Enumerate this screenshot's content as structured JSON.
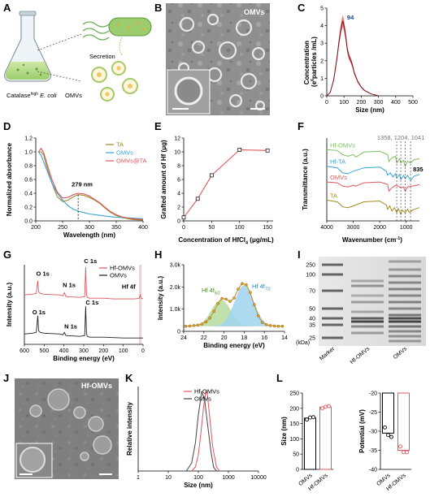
{
  "colors": {
    "ta": "#9a8a2a",
    "omvs": "#3aa3d4",
    "omvsta": "#e0575c",
    "hfomvs": "#e0575c",
    "hfta": "#3aa3d4",
    "gray": "#555555",
    "green": "#7cbf5f",
    "gold": "#a08a20",
    "xps_green": "#b5dc9e",
    "xps_blue": "#9fd4ee"
  },
  "panels": {
    "A": "A",
    "B": "B",
    "C": "C",
    "D": "D",
    "E": "E",
    "F": "F",
    "G": "G",
    "H": "H",
    "I": "I",
    "J": "J",
    "K": "K",
    "L": "L"
  },
  "A": {
    "secretion": "Secretion",
    "catalase_pre": "Catalase",
    "catalase_sup": "high",
    "catalase_species": "E. coli",
    "omvs": "OMVs"
  },
  "B": {
    "label": "OMVs"
  },
  "J": {
    "label": "Hf-OMVs"
  },
  "I": {
    "kda": [
      "250",
      "100",
      "70",
      "50",
      "40",
      "35",
      "25"
    ],
    "unit": "(kDa)",
    "lanes": [
      "Marker",
      "Hf-OMVs",
      "OMVs"
    ]
  },
  "chart_data": [
    {
      "panel": "C",
      "type": "line",
      "xlabel": "Size (nm)",
      "ylabel_main": "Concentration",
      "ylabel_sub": "(e",
      "ylabel_sup": "6",
      "ylabel_rest": "particles /mL)",
      "xlim": [
        0,
        500
      ],
      "ylim": [
        0,
        5
      ],
      "xticks": [
        "0",
        "100",
        "200",
        "300",
        "400",
        "500"
      ],
      "yticks": [
        "0",
        "1",
        "2",
        "3",
        "4",
        "5"
      ],
      "peak_label": "94",
      "x": [
        0,
        20,
        40,
        60,
        70,
        80,
        90,
        94,
        100,
        110,
        120,
        130,
        140,
        150,
        160,
        180,
        200,
        220,
        240,
        260,
        280,
        300
      ],
      "y": [
        0,
        0.2,
        0.9,
        2.2,
        3.0,
        3.7,
        4.2,
        4.25,
        4.0,
        3.4,
        2.6,
        2.2,
        2.0,
        1.7,
        1.3,
        0.8,
        0.5,
        0.3,
        0.2,
        0.1,
        0.05,
        0
      ]
    },
    {
      "panel": "D",
      "type": "line",
      "xlabel": "Wavelength (nm)",
      "ylabel": "Normalized absorbance",
      "xlim": [
        200,
        400
      ],
      "ylim": [
        0,
        1.2
      ],
      "xticks": [
        "200",
        "250",
        "300",
        "350",
        "400"
      ],
      "yticks": [
        "0.0",
        "0.2",
        "0.4",
        "0.6",
        "0.8",
        "1.0",
        "1.2"
      ],
      "annotation": "279 nm",
      "legend": [
        "TA",
        "OMVs",
        "OMVs@TA"
      ],
      "series": [
        {
          "name": "TA",
          "x": [
            205,
            210,
            215,
            220,
            230,
            240,
            250,
            260,
            270,
            279,
            290,
            300,
            310,
            320,
            330,
            340,
            350,
            360,
            380,
            400
          ],
          "y": [
            1.0,
            1.0,
            0.95,
            0.8,
            0.55,
            0.35,
            0.28,
            0.3,
            0.35,
            0.38,
            0.37,
            0.34,
            0.3,
            0.25,
            0.18,
            0.12,
            0.08,
            0.05,
            0.02,
            0.01
          ]
        },
        {
          "name": "OMVs",
          "x": [
            205,
            210,
            220,
            230,
            240,
            250,
            260,
            270,
            280,
            290,
            300,
            320,
            340,
            360,
            380,
            400
          ],
          "y": [
            1.0,
            0.95,
            0.75,
            0.55,
            0.4,
            0.3,
            0.22,
            0.17,
            0.14,
            0.12,
            0.1,
            0.08,
            0.06,
            0.05,
            0.04,
            0.03
          ]
        },
        {
          "name": "OMVs@TA",
          "x": [
            205,
            210,
            215,
            220,
            230,
            240,
            250,
            260,
            270,
            279,
            290,
            300,
            310,
            320,
            330,
            340,
            350,
            360,
            380,
            400
          ],
          "y": [
            1.0,
            1.05,
            0.98,
            0.85,
            0.6,
            0.42,
            0.33,
            0.34,
            0.38,
            0.4,
            0.39,
            0.36,
            0.31,
            0.26,
            0.19,
            0.13,
            0.09,
            0.06,
            0.03,
            0.02
          ]
        }
      ]
    },
    {
      "panel": "E",
      "type": "line",
      "xlabel_pre": "Concentration of HfCl",
      "xlabel_sub": "4",
      "xlabel_post": " (μg/mL)",
      "ylabel": "Grafted amount of Hf (μg)",
      "xlim": [
        0,
        160
      ],
      "ylim": [
        0,
        12
      ],
      "xticks": [
        "0",
        "50",
        "100",
        "150"
      ],
      "yticks": [
        "0",
        "2",
        "4",
        "6",
        "8",
        "10",
        "12"
      ],
      "x": [
        0,
        25,
        50,
        100,
        150
      ],
      "y": [
        0.5,
        3.2,
        6.6,
        10.3,
        10.2
      ]
    },
    {
      "panel": "F",
      "type": "line",
      "xlabel_pre": "Wavenumber (cm",
      "xlabel_sup": "-1",
      "xlabel_post": ")",
      "ylabel": "Transmittance (a.u.)",
      "xlim": [
        4000,
        500
      ],
      "xticks": [
        "4000",
        "3000",
        "2000",
        "1000"
      ],
      "peaks": [
        "1358",
        "1204",
        "1041"
      ],
      "peak_835": "835",
      "series": [
        {
          "name": "Hf-OMVs",
          "x": [
            4000,
            3600,
            3400,
            3200,
            3000,
            2900,
            2600,
            2000,
            1700,
            1650,
            1540,
            1400,
            1358,
            1250,
            1204,
            1100,
            1041,
            950,
            835,
            700,
            500
          ],
          "y": [
            0.86,
            0.85,
            0.8,
            0.78,
            0.8,
            0.77,
            0.83,
            0.84,
            0.8,
            0.72,
            0.76,
            0.78,
            0.7,
            0.75,
            0.7,
            0.73,
            0.66,
            0.72,
            0.7,
            0.74,
            0.75
          ]
        },
        {
          "name": "Hf-TA",
          "x": [
            4000,
            3600,
            3400,
            3200,
            3000,
            2600,
            2000,
            1750,
            1700,
            1600,
            1500,
            1400,
            1358,
            1250,
            1204,
            1100,
            1041,
            950,
            835,
            700,
            500
          ],
          "y": [
            0.66,
            0.64,
            0.58,
            0.57,
            0.6,
            0.64,
            0.65,
            0.6,
            0.55,
            0.58,
            0.53,
            0.57,
            0.52,
            0.56,
            0.5,
            0.55,
            0.51,
            0.55,
            0.49,
            0.54,
            0.56
          ]
        },
        {
          "name": "OMVs",
          "x": [
            4000,
            3600,
            3400,
            3200,
            3000,
            2900,
            2600,
            2000,
            1700,
            1650,
            1540,
            1400,
            1300,
            1200,
            1100,
            1041,
            950,
            800,
            600,
            500
          ],
          "y": [
            0.47,
            0.46,
            0.42,
            0.41,
            0.43,
            0.42,
            0.46,
            0.47,
            0.44,
            0.36,
            0.4,
            0.43,
            0.42,
            0.4,
            0.41,
            0.36,
            0.41,
            0.42,
            0.43,
            0.44
          ]
        },
        {
          "name": "TA",
          "x": [
            4000,
            3600,
            3400,
            3200,
            3000,
            2600,
            2000,
            1750,
            1700,
            1620,
            1540,
            1450,
            1358,
            1300,
            1204,
            1150,
            1041,
            950,
            870,
            760,
            600,
            500
          ],
          "y": [
            0.25,
            0.23,
            0.17,
            0.16,
            0.18,
            0.23,
            0.24,
            0.19,
            0.14,
            0.18,
            0.12,
            0.16,
            0.1,
            0.15,
            0.08,
            0.13,
            0.1,
            0.14,
            0.1,
            0.13,
            0.15,
            0.16
          ]
        }
      ]
    },
    {
      "panel": "G",
      "type": "line",
      "xlabel": "Binding energy (eV)",
      "ylabel": "Intensity (a.u.)",
      "xlim": [
        600,
        0
      ],
      "xticks": [
        "600",
        "500",
        "400",
        "300",
        "200",
        "100",
        "0"
      ],
      "legend": [
        "Hf-OMVs",
        "OMVs"
      ],
      "labels_top": [
        "O 1s",
        "N 1s",
        "C 1s",
        "Hf 4f"
      ],
      "labels_bottom": [
        "O 1s",
        "N 1s",
        "C 1s"
      ],
      "series": [
        {
          "name": "Hf-OMVs",
          "x": [
            600,
            560,
            540,
            532,
            528,
            520,
            500,
            420,
            405,
            398,
            390,
            320,
            295,
            290,
            286,
            282,
            270,
            200,
            150,
            100,
            40,
            20,
            14,
            10,
            0
          ],
          "y": [
            0.62,
            0.63,
            0.64,
            0.8,
            0.66,
            0.64,
            0.63,
            0.62,
            0.61,
            0.65,
            0.6,
            0.59,
            0.6,
            0.97,
            0.63,
            0.59,
            0.58,
            0.58,
            0.57,
            0.57,
            0.57,
            0.58,
            0.62,
            0.58,
            0.57
          ]
        },
        {
          "name": "OMVs",
          "x": [
            600,
            560,
            540,
            532,
            528,
            520,
            500,
            420,
            405,
            398,
            390,
            320,
            295,
            290,
            286,
            282,
            270,
            200,
            100,
            0
          ],
          "y": [
            0.13,
            0.14,
            0.15,
            0.36,
            0.17,
            0.15,
            0.14,
            0.13,
            0.12,
            0.15,
            0.11,
            0.1,
            0.11,
            0.48,
            0.14,
            0.1,
            0.09,
            0.09,
            0.08,
            0.08
          ]
        }
      ]
    },
    {
      "panel": "H",
      "type": "scatter",
      "xlabel": "Binding energy (eV)",
      "ylabel": "Intensity (a.u.)",
      "xlim": [
        24,
        14
      ],
      "ylim": [
        0,
        3000
      ],
      "xticks": [
        "24",
        "22",
        "20",
        "18",
        "16",
        "14"
      ],
      "yticks": [
        "0",
        "1.0k",
        "2.0k",
        "3.0k"
      ],
      "peak1_pre": "Hf 4f",
      "peak1_sub": "5/2",
      "peak2_pre": "Hf 4f",
      "peak2_sub": "7/2",
      "x": [
        23.8,
        23.4,
        23.0,
        22.6,
        22.2,
        21.8,
        21.4,
        21.0,
        20.6,
        20.2,
        19.8,
        19.4,
        19.0,
        18.6,
        18.2,
        17.8,
        17.4,
        17.0,
        16.6,
        16.2,
        15.8,
        15.4,
        15.0,
        14.6,
        14.2
      ],
      "y": [
        230,
        240,
        260,
        280,
        330,
        420,
        600,
        900,
        1250,
        1480,
        1450,
        1350,
        1500,
        1900,
        2150,
        2100,
        1750,
        1200,
        700,
        400,
        300,
        260,
        240,
        230,
        230
      ]
    },
    {
      "panel": "K",
      "type": "line",
      "xlabel": "Size (nm)",
      "ylabel": "Relative intensity",
      "xlim": [
        1,
        10000
      ],
      "xscale": "log",
      "xticks": [
        "1",
        "10",
        "100",
        "1000",
        "10000"
      ],
      "legend": [
        "Hf-OMVs",
        "OMVs"
      ],
      "series": [
        {
          "name": "Hf-OMVs",
          "x": [
            60,
            80,
            100,
            120,
            150,
            180,
            200,
            250,
            300,
            400,
            500
          ],
          "y": [
            0,
            0.05,
            0.2,
            0.45,
            0.8,
            1.0,
            0.95,
            0.6,
            0.3,
            0.05,
            0
          ]
        },
        {
          "name": "OMVs",
          "x": [
            40,
            60,
            80,
            100,
            130,
            160,
            200,
            260,
            320,
            400
          ],
          "y": [
            0,
            0.1,
            0.35,
            0.7,
            0.98,
            0.9,
            0.6,
            0.25,
            0.05,
            0
          ]
        }
      ]
    },
    {
      "panel": "L",
      "type": "bar",
      "ylabel": "Size (nm)",
      "categories": [
        "OMVs",
        "Hf-OMVs"
      ],
      "values": [
        168,
        204
      ],
      "points": [
        [
          163,
          170,
          171
        ],
        [
          200,
          205,
          207
        ]
      ],
      "ylim": [
        0,
        250
      ],
      "yticks": [
        "0",
        "50",
        "100",
        "150",
        "200",
        "250"
      ]
    },
    {
      "panel": "L",
      "type": "bar",
      "ylabel": "Potential (mV)",
      "categories": [
        "OMVs",
        "Hf-OMVs"
      ],
      "values": [
        -30.5,
        -35.0
      ],
      "points": [
        [
          -29.0,
          -31.0,
          -31.5
        ],
        [
          -34.0,
          -35.5,
          -35.5
        ]
      ],
      "ylim": [
        -40,
        -20
      ],
      "yticks": [
        "-20",
        "-25",
        "-30",
        "-35",
        "-40"
      ]
    }
  ]
}
